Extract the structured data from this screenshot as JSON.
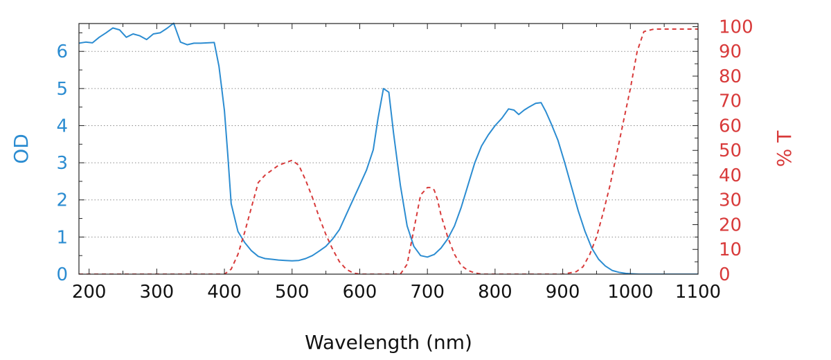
{
  "chart_data": {
    "type": "line",
    "xlabel": "Wavelength (nm)",
    "ylabel_left": "OD",
    "ylabel_right": "% T",
    "xlim": [
      185,
      1100
    ],
    "ylim_left": [
      0,
      6.75
    ],
    "ylim_right": [
      0,
      101.25
    ],
    "x_ticks": [
      200,
      300,
      400,
      500,
      600,
      700,
      800,
      900,
      1000,
      1100
    ],
    "y_ticks_left": [
      0,
      1,
      2,
      3,
      4,
      5,
      6
    ],
    "y_ticks_right": [
      0,
      10,
      20,
      30,
      40,
      50,
      60,
      70,
      80,
      90,
      100
    ],
    "grid": "horizontal dotted",
    "colors": {
      "od": "#2b8cd1",
      "transmission": "#d83a3a"
    },
    "series": [
      {
        "axis": "left",
        "style": "solid",
        "x": [
          185,
          195,
          205,
          215,
          225,
          235,
          245,
          255,
          265,
          275,
          285,
          295,
          305,
          315,
          325,
          335,
          345,
          355,
          365,
          375,
          385,
          392,
          396,
          400,
          405,
          410,
          420,
          430,
          440,
          450,
          460,
          470,
          480,
          490,
          500,
          510,
          520,
          530,
          540,
          550,
          560,
          570,
          580,
          590,
          600,
          610,
          620,
          627,
          635,
          643,
          650,
          660,
          670,
          680,
          690,
          700,
          710,
          720,
          730,
          740,
          750,
          760,
          770,
          780,
          790,
          800,
          810,
          820,
          828,
          835,
          843,
          850,
          860,
          868,
          875,
          883,
          893,
          903,
          913,
          923,
          933,
          943,
          953,
          963,
          973,
          983,
          993,
          1003,
          1013,
          1023,
          1035,
          1050,
          1075,
          1100
        ],
        "y": [
          6.22,
          6.25,
          6.23,
          6.38,
          6.5,
          6.63,
          6.58,
          6.38,
          6.47,
          6.42,
          6.32,
          6.47,
          6.5,
          6.62,
          6.76,
          6.25,
          6.18,
          6.22,
          6.22,
          6.23,
          6.24,
          5.6,
          5.0,
          4.4,
          3.2,
          1.9,
          1.15,
          0.85,
          0.63,
          0.48,
          0.42,
          0.4,
          0.38,
          0.37,
          0.36,
          0.37,
          0.42,
          0.5,
          0.62,
          0.75,
          0.95,
          1.2,
          1.6,
          2.0,
          2.4,
          2.8,
          3.35,
          4.2,
          5.0,
          4.9,
          3.8,
          2.4,
          1.3,
          0.75,
          0.5,
          0.46,
          0.53,
          0.7,
          0.95,
          1.3,
          1.8,
          2.4,
          3.0,
          3.45,
          3.75,
          4.0,
          4.2,
          4.45,
          4.42,
          4.3,
          4.42,
          4.5,
          4.6,
          4.62,
          4.38,
          4.05,
          3.6,
          3.0,
          2.35,
          1.7,
          1.15,
          0.7,
          0.4,
          0.22,
          0.1,
          0.05,
          0.02,
          0.01,
          0.0,
          0.0,
          0.0,
          0.0,
          0.0,
          0.0
        ]
      },
      {
        "axis": "right",
        "style": "dashed",
        "x": [
          185,
          300,
          390,
          400,
          410,
          420,
          430,
          440,
          450,
          460,
          470,
          480,
          490,
          500,
          510,
          520,
          530,
          540,
          550,
          560,
          570,
          580,
          590,
          600,
          660,
          670,
          680,
          690,
          700,
          705,
          710,
          715,
          720,
          730,
          740,
          750,
          760,
          770,
          780,
          800,
          900,
          920,
          930,
          940,
          950,
          960,
          970,
          980,
          990,
          1000,
          1010,
          1020,
          1035,
          1050,
          1075,
          1100
        ],
        "y": [
          0,
          0,
          0,
          0,
          2,
          8,
          17,
          27,
          37,
          40,
          42,
          44,
          45,
          46,
          44,
          38,
          31,
          23,
          16,
          10,
          5,
          2,
          0.5,
          0,
          0,
          4,
          18,
          32,
          35,
          35,
          34,
          30,
          24,
          15,
          8,
          3.5,
          1.5,
          0.5,
          0,
          0,
          0,
          1,
          3,
          8,
          15,
          25,
          36,
          49,
          62,
          75,
          90,
          98,
          99,
          99,
          99,
          99
        ]
      }
    ]
  }
}
